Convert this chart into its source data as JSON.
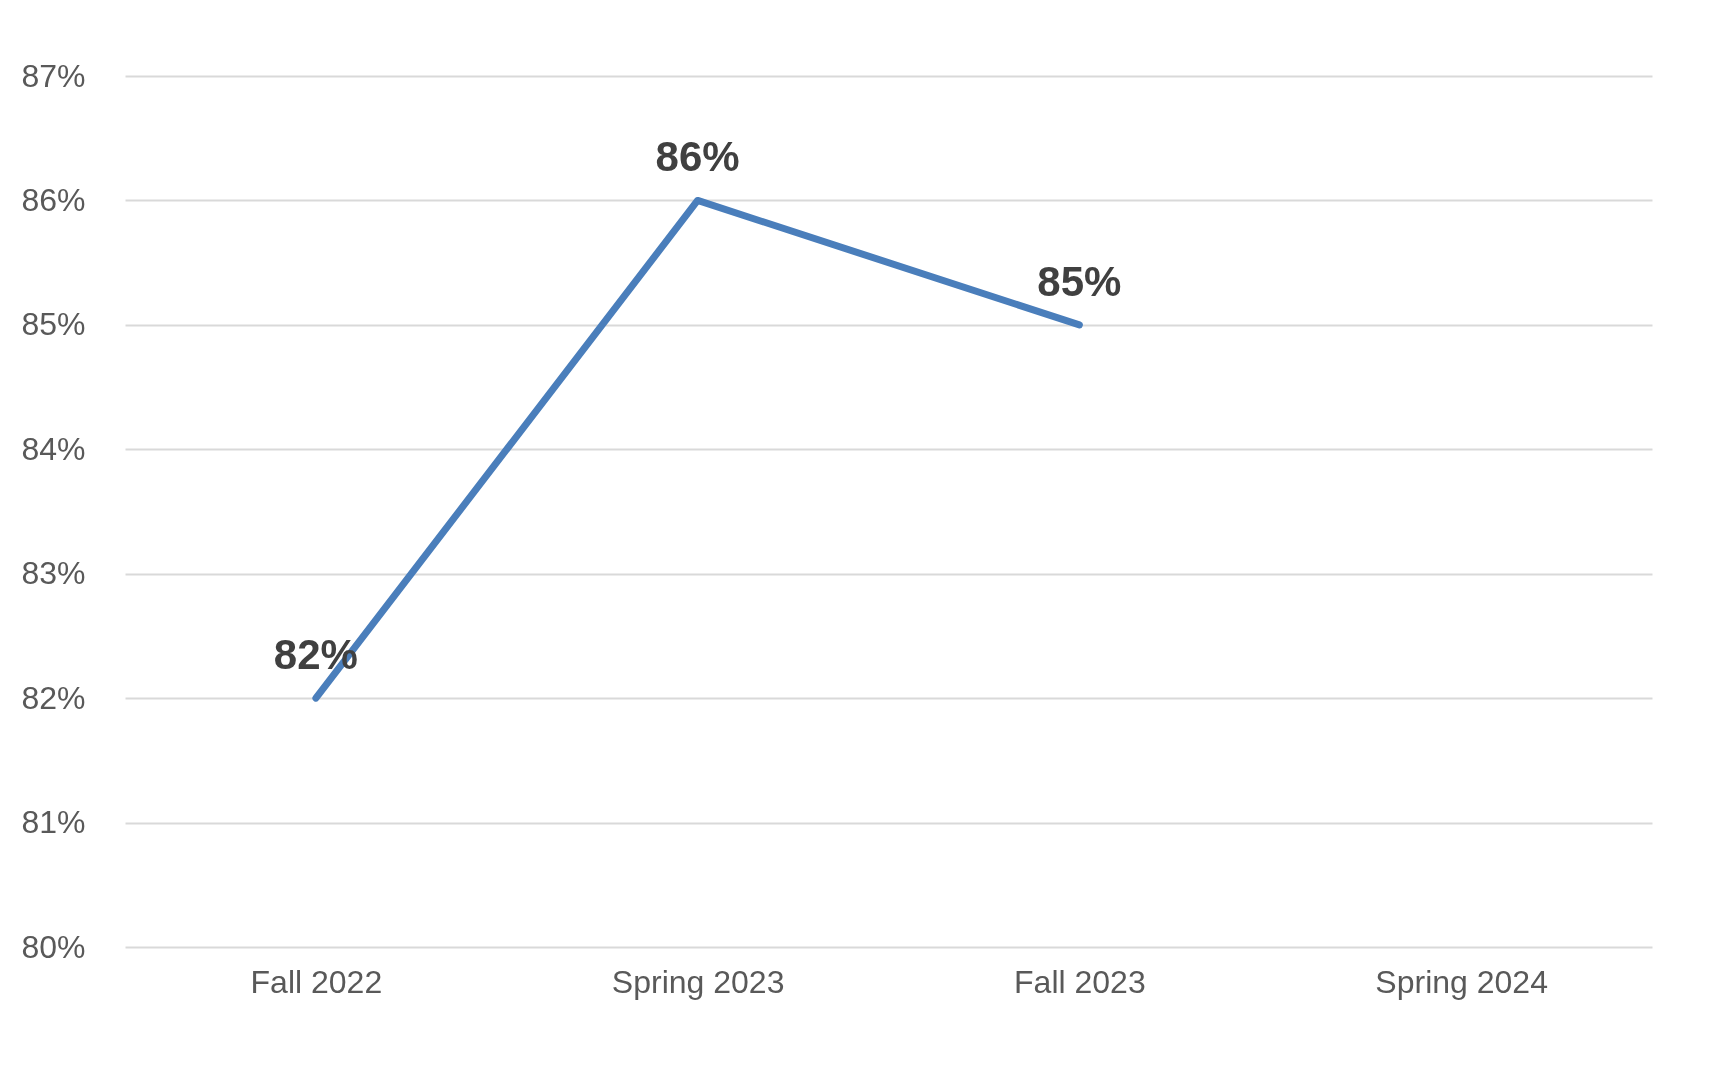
{
  "chart_data": {
    "type": "line",
    "categories": [
      "Fall 2022",
      "Spring 2023",
      "Fall 2023",
      "Spring 2024"
    ],
    "series": [
      {
        "color": "#4a7ebb",
        "values": [
          82,
          86,
          85,
          null
        ],
        "value_labels": [
          "82%",
          "86%",
          "85%",
          null
        ]
      }
    ],
    "ylim": [
      80,
      87
    ],
    "yticks": [
      {
        "value": 80,
        "label": "80%"
      },
      {
        "value": 81,
        "label": "81%"
      },
      {
        "value": 82,
        "label": "82%"
      },
      {
        "value": 83,
        "label": "83%"
      },
      {
        "value": 84,
        "label": "84%"
      },
      {
        "value": 85,
        "label": "85%"
      },
      {
        "value": 86,
        "label": "86%"
      },
      {
        "value": 87,
        "label": "87%"
      }
    ],
    "grid": "y",
    "marker": "none",
    "line_style": "solid"
  }
}
